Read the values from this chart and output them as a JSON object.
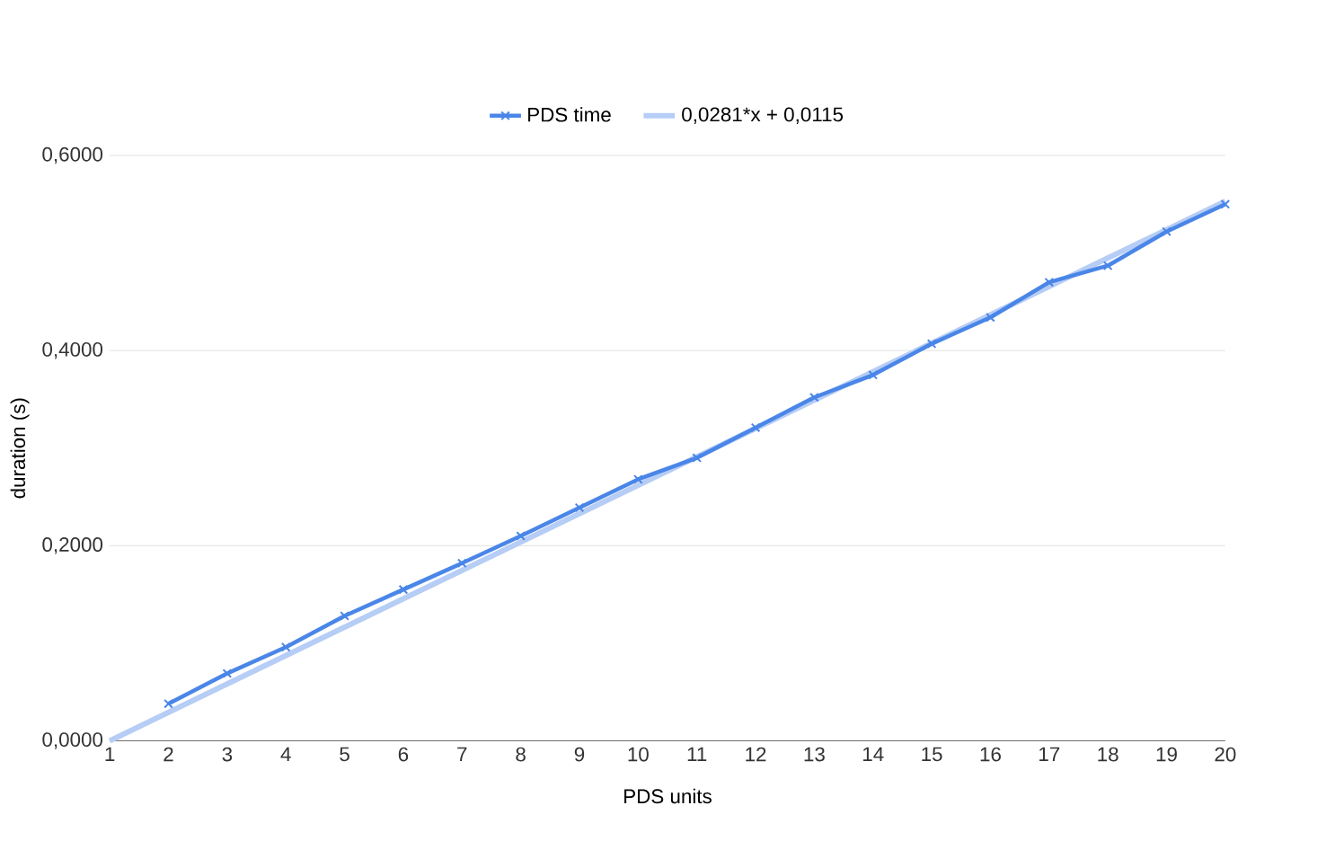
{
  "chart_data": {
    "type": "line",
    "xlabel": "PDS units",
    "ylabel": "duration (s)",
    "xlim": [
      1,
      20
    ],
    "xticks": [
      1,
      2,
      3,
      4,
      5,
      6,
      7,
      8,
      9,
      10,
      11,
      12,
      13,
      14,
      15,
      16,
      17,
      18,
      19,
      20
    ],
    "ylim": [
      0,
      0.6
    ],
    "yticks": [
      {
        "value": 0,
        "label": "0,0000"
      },
      {
        "value": 0.2,
        "label": "0,2000"
      },
      {
        "value": 0.4,
        "label": "0,4000"
      },
      {
        "value": 0.6,
        "label": "0,6000"
      }
    ],
    "grid": "y",
    "legend": "top",
    "marker": "cross",
    "series": [
      {
        "name": "PDS time",
        "color": "#4a86e8",
        "x": [
          2,
          3,
          4,
          5,
          6,
          7,
          8,
          9,
          10,
          11,
          12,
          13,
          14,
          15,
          16,
          17,
          18,
          19,
          20
        ],
        "values": [
          0.038,
          0.069,
          0.096,
          0.128,
          0.155,
          0.182,
          0.21,
          0.239,
          0.268,
          0.29,
          0.321,
          0.352,
          0.375,
          0.407,
          0.434,
          0.47,
          0.487,
          0.522,
          0.55
        ]
      },
      {
        "name": "0,0281*x + 0,0115",
        "color": "#b6cdf5",
        "type": "line",
        "marker": "none",
        "x": [
          1,
          20
        ],
        "values": [
          0.0,
          0.553
        ]
      }
    ]
  }
}
